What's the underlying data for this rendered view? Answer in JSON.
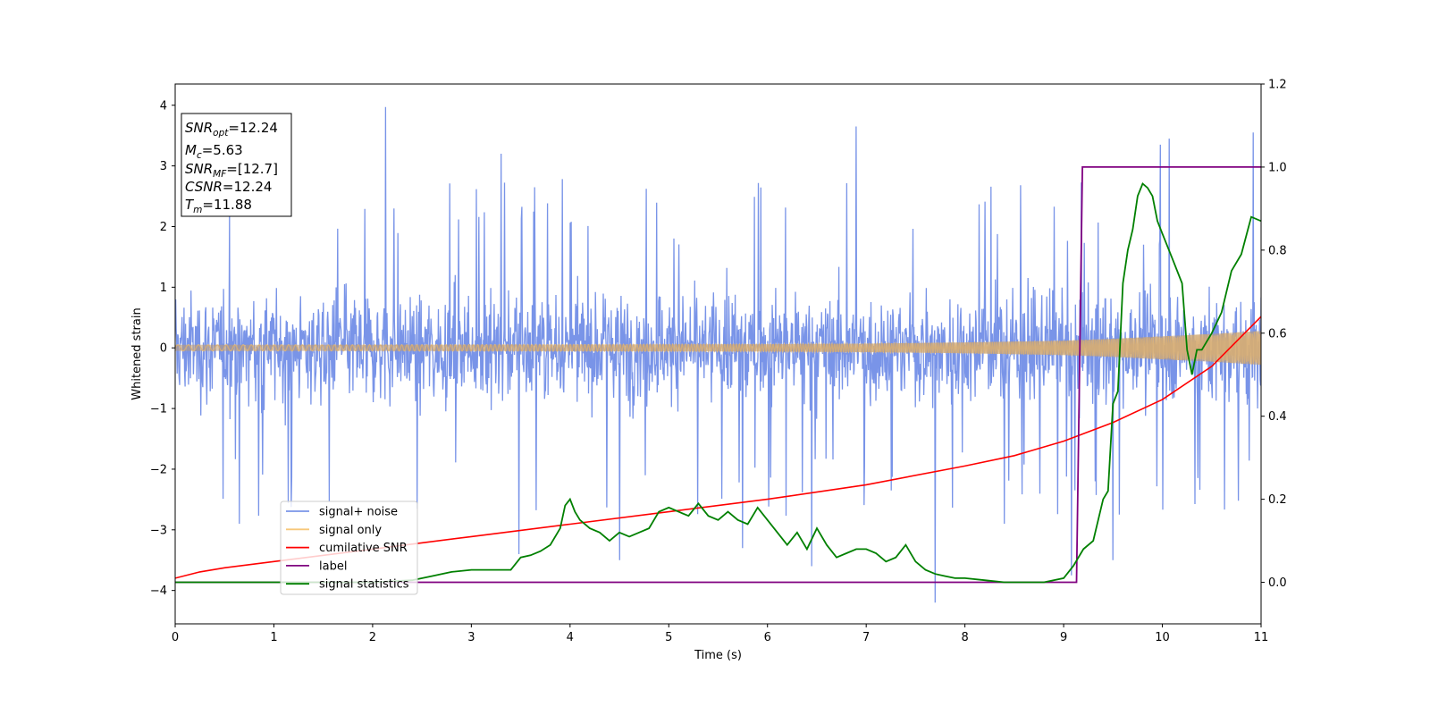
{
  "chart_data": {
    "type": "line",
    "xlabel": "Time (s)",
    "ylabel": "Whitened strain",
    "xlim": [
      0,
      11
    ],
    "ylim_left": [
      -4.55,
      4.35
    ],
    "ylim_right": [
      -0.1,
      1.2
    ],
    "x_ticks": [
      0,
      1,
      2,
      3,
      4,
      5,
      6,
      7,
      8,
      9,
      10,
      11
    ],
    "y_ticks_left": [
      -4,
      -3,
      -2,
      -1,
      0,
      1,
      2,
      3,
      4
    ],
    "y_ticks_left_labels": [
      "−4",
      "−3",
      "−2",
      "−1",
      "0",
      "1",
      "2",
      "3",
      "4"
    ],
    "y_ticks_right": [
      0.0,
      0.2,
      0.4,
      0.6,
      0.8,
      1.0,
      1.2
    ],
    "y_ticks_right_labels": [
      "0.0",
      "0.2",
      "0.4",
      "0.6",
      "0.8",
      "1.0",
      "1.2"
    ],
    "annotation": {
      "lines": [
        {
          "var": "SNR",
          "sub": "opt",
          "value": "=12.24"
        },
        {
          "var": "M",
          "sub": "c",
          "value": "=5.63"
        },
        {
          "var": "SNR",
          "sub": "MF",
          "value": "=[12.7]"
        },
        {
          "var": "CSNR",
          "sub": "",
          "value": "=12.24"
        },
        {
          "var": "T",
          "sub": "m",
          "value": "=11.88"
        }
      ]
    },
    "legend": {
      "placement": "lower-left",
      "entries": [
        {
          "label": "signal+ noise",
          "color": "#7994e8"
        },
        {
          "label": "signal only",
          "color": "#f7c77a"
        },
        {
          "label": "cumilative SNR",
          "color": "#ff0000"
        },
        {
          "label": "label",
          "color": "#800080"
        },
        {
          "label": "signal statistics",
          "color": "#008000"
        }
      ]
    },
    "series": [
      {
        "name": "signal+ noise",
        "axis": "left",
        "kind": "noise",
        "color": "#7994e8",
        "typical_range": [
          -1.7,
          1.7
        ],
        "peaks": [
          [
            2.13,
            3.97
          ],
          [
            3.3,
            3.2
          ],
          [
            6.9,
            3.65
          ],
          [
            9.98,
            3.35
          ],
          [
            10.92,
            3.55
          ],
          [
            10.07,
            3.45
          ],
          [
            2.45,
            -2.65
          ],
          [
            3.48,
            -3.4
          ],
          [
            4.5,
            -3.5
          ],
          [
            5.75,
            -3.3
          ],
          [
            6.45,
            -3.6
          ],
          [
            7.7,
            -4.2
          ],
          [
            9.08,
            -3.75
          ],
          [
            9.5,
            -3.5
          ],
          [
            0.65,
            -2.9
          ],
          [
            8.4,
            -2.9
          ]
        ]
      },
      {
        "name": "signal only",
        "axis": "left",
        "kind": "envelope",
        "color": "#f7c77a",
        "envelope_x": [
          0,
          2,
          4,
          6,
          7,
          8,
          9,
          9.5,
          10,
          10.5,
          11
        ],
        "envelope_amp": [
          0.05,
          0.05,
          0.055,
          0.06,
          0.07,
          0.09,
          0.12,
          0.15,
          0.19,
          0.23,
          0.28
        ]
      },
      {
        "name": "cumilative SNR",
        "axis": "right",
        "color": "#ff0000",
        "x": [
          0,
          0.25,
          0.5,
          1,
          2,
          3,
          4,
          5,
          6,
          7,
          8,
          8.5,
          9,
          9.5,
          10,
          10.5,
          11
        ],
        "y": [
          0.01,
          0.025,
          0.035,
          0.05,
          0.08,
          0.11,
          0.14,
          0.17,
          0.2,
          0.235,
          0.28,
          0.305,
          0.34,
          0.385,
          0.44,
          0.52,
          0.64
        ]
      },
      {
        "name": "label",
        "axis": "right",
        "color": "#800080",
        "x": [
          0,
          9.13,
          9.19,
          11
        ],
        "y": [
          0,
          0,
          1,
          1
        ]
      },
      {
        "name": "signal statistics",
        "axis": "right",
        "color": "#008000",
        "x": [
          0,
          1,
          2,
          2.4,
          2.6,
          2.8,
          3.0,
          3.2,
          3.4,
          3.5,
          3.6,
          3.7,
          3.8,
          3.9,
          3.95,
          4.0,
          4.05,
          4.1,
          4.2,
          4.3,
          4.4,
          4.5,
          4.6,
          4.7,
          4.8,
          4.9,
          5.0,
          5.1,
          5.2,
          5.3,
          5.4,
          5.5,
          5.6,
          5.7,
          5.8,
          5.9,
          6.0,
          6.1,
          6.2,
          6.3,
          6.4,
          6.5,
          6.6,
          6.7,
          6.8,
          6.9,
          7.0,
          7.1,
          7.2,
          7.3,
          7.4,
          7.5,
          7.6,
          7.7,
          7.8,
          7.9,
          8.0,
          8.2,
          8.4,
          8.6,
          8.8,
          9.0,
          9.1,
          9.2,
          9.3,
          9.4,
          9.45,
          9.5,
          9.55,
          9.6,
          9.65,
          9.7,
          9.75,
          9.8,
          9.85,
          9.9,
          9.95,
          10.0,
          10.1,
          10.2,
          10.25,
          10.3,
          10.35,
          10.4,
          10.5,
          10.6,
          10.7,
          10.8,
          10.9,
          11.0
        ],
        "y": [
          0.0,
          0.0,
          0.0,
          0.005,
          0.015,
          0.025,
          0.03,
          0.03,
          0.03,
          0.06,
          0.065,
          0.075,
          0.09,
          0.13,
          0.185,
          0.2,
          0.17,
          0.15,
          0.13,
          0.12,
          0.1,
          0.12,
          0.11,
          0.12,
          0.13,
          0.17,
          0.18,
          0.17,
          0.16,
          0.19,
          0.16,
          0.15,
          0.17,
          0.15,
          0.14,
          0.18,
          0.15,
          0.12,
          0.09,
          0.12,
          0.08,
          0.13,
          0.09,
          0.06,
          0.07,
          0.08,
          0.08,
          0.07,
          0.05,
          0.06,
          0.09,
          0.05,
          0.03,
          0.02,
          0.015,
          0.01,
          0.01,
          0.005,
          0.0,
          0.0,
          0.0,
          0.01,
          0.04,
          0.08,
          0.1,
          0.2,
          0.22,
          0.43,
          0.46,
          0.72,
          0.8,
          0.85,
          0.93,
          0.96,
          0.95,
          0.93,
          0.87,
          0.84,
          0.78,
          0.72,
          0.56,
          0.5,
          0.56,
          0.56,
          0.6,
          0.65,
          0.75,
          0.79,
          0.88,
          0.87
        ]
      }
    ]
  }
}
